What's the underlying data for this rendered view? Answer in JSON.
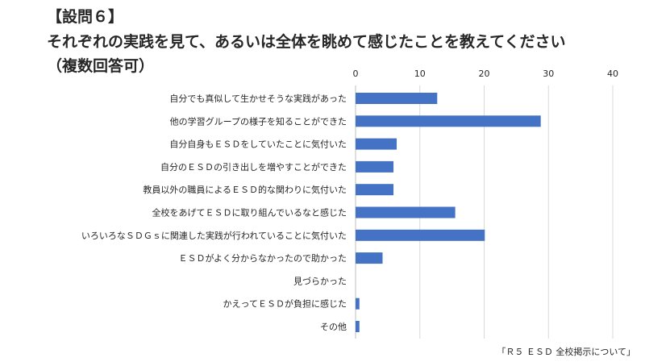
{
  "title_lines": [
    "【設問６】",
    "それぞれの実践を見て、あるいは全体を眺めて感じたことを教えてください",
    "（複数回答可）"
  ],
  "source_note": "「Ｒ５ ＥＳＤ 全校掲示について」",
  "colors": {
    "bar": "#4472C4",
    "grid": "#D9D9D9",
    "text": "#262626"
  },
  "chart_data": {
    "type": "bar",
    "orientation": "horizontal",
    "categories": [
      "自分でも真似して生かせそうな実践があった",
      "他の学習グループの様子を知ることができた",
      "自分自身もＥＳＤをしていたことに気付いた",
      "自分のＥＳＤの引き出しを増やすことができた",
      "教員以外の職員によるＥＳＤ的な関わりに気付いた",
      "全校をあげてＥＳＤに取り組んでいるなと感じた",
      "いろいろなＳＤＧｓに関連した実践が行われていることに気付いた",
      "ＥＳＤがよく分からなかったので助かった",
      "見づらかった",
      "かえってＥＳＤが負担に感じた",
      "その他"
    ],
    "values": [
      12.7,
      28.8,
      6.4,
      5.9,
      5.9,
      15.5,
      20.1,
      4.2,
      0,
      0.6,
      0.6
    ],
    "xlim": [
      0,
      40
    ],
    "xticks": [
      0,
      10,
      20,
      30,
      40
    ],
    "x_axis_position": "top",
    "grid": true,
    "legend": "none",
    "title": "",
    "xlabel": "",
    "ylabel": ""
  }
}
